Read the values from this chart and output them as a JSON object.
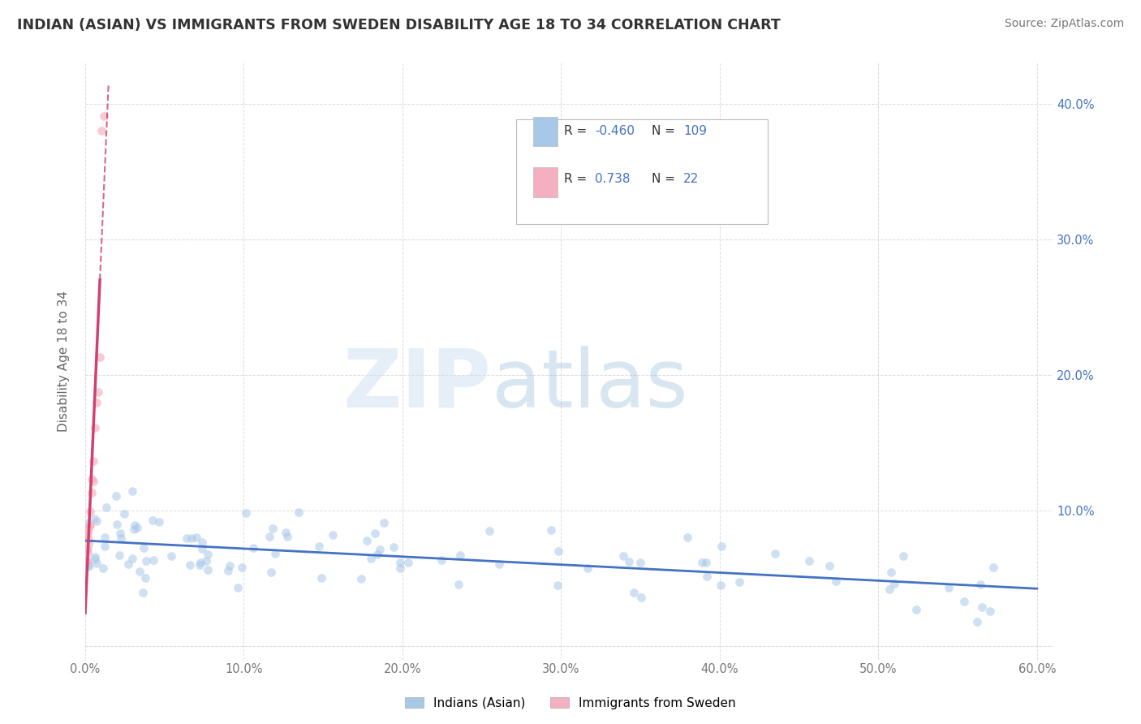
{
  "title": "INDIAN (ASIAN) VS IMMIGRANTS FROM SWEDEN DISABILITY AGE 18 TO 34 CORRELATION CHART",
  "source": "Source: ZipAtlas.com",
  "ylabel": "Disability Age 18 to 34",
  "xlim": [
    0.0,
    0.61
  ],
  "ylim": [
    -0.01,
    0.43
  ],
  "blue_R": -0.46,
  "blue_N": 109,
  "pink_R": 0.738,
  "pink_N": 22,
  "blue_color": "#a8c8e8",
  "pink_color": "#f4b0c0",
  "blue_line_color": "#4472c4",
  "pink_line_color": "#d04070",
  "legend_blue_label": "Indians (Asian)",
  "legend_pink_label": "Immigrants from Sweden",
  "background_color": "#ffffff",
  "grid_color": "#cccccc",
  "title_color": "#333333",
  "right_tick_color": "#4472c4",
  "left_tick_color": "#888888",
  "blue_marker_size": 60,
  "pink_marker_size": 60,
  "blue_alpha": 0.55,
  "pink_alpha": 0.65
}
